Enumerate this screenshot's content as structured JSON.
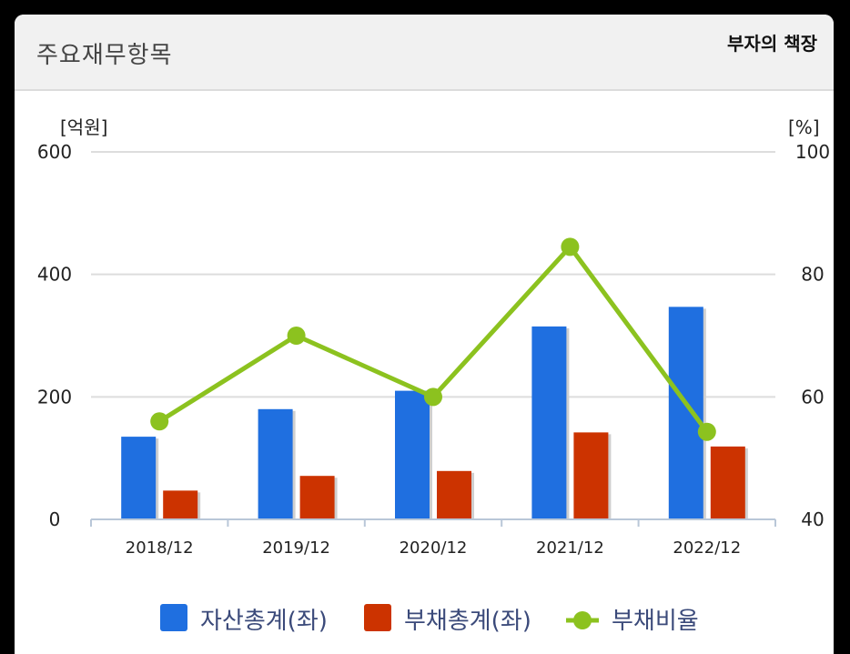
{
  "header": {
    "title": "주요재무항목",
    "watermark": "부자의 책장"
  },
  "chart_data": {
    "type": "bar",
    "categories": [
      "2018/12",
      "2019/12",
      "2020/12",
      "2021/12",
      "2022/12"
    ],
    "series": [
      {
        "name": "자산총계(좌)",
        "type": "bar",
        "axis": "left",
        "color": "#1f6fe0",
        "values": [
          135,
          180,
          210,
          315,
          347
        ]
      },
      {
        "name": "부채총계(좌)",
        "type": "bar",
        "axis": "left",
        "color": "#cc3300",
        "values": [
          47,
          71,
          79,
          142,
          119
        ]
      },
      {
        "name": "부채비율",
        "type": "line",
        "axis": "right",
        "color": "#8cc21f",
        "values": [
          56,
          70,
          60,
          84.5,
          54.3
        ]
      }
    ],
    "y_left": {
      "label": "[억원]",
      "ylim": [
        0,
        600
      ],
      "ticks": [
        0,
        200,
        400,
        600
      ]
    },
    "y_right": {
      "label": "[%]",
      "ylim": [
        40,
        100
      ],
      "ticks": [
        40,
        60,
        80,
        100
      ]
    },
    "grid": true,
    "legend": "bottom"
  }
}
